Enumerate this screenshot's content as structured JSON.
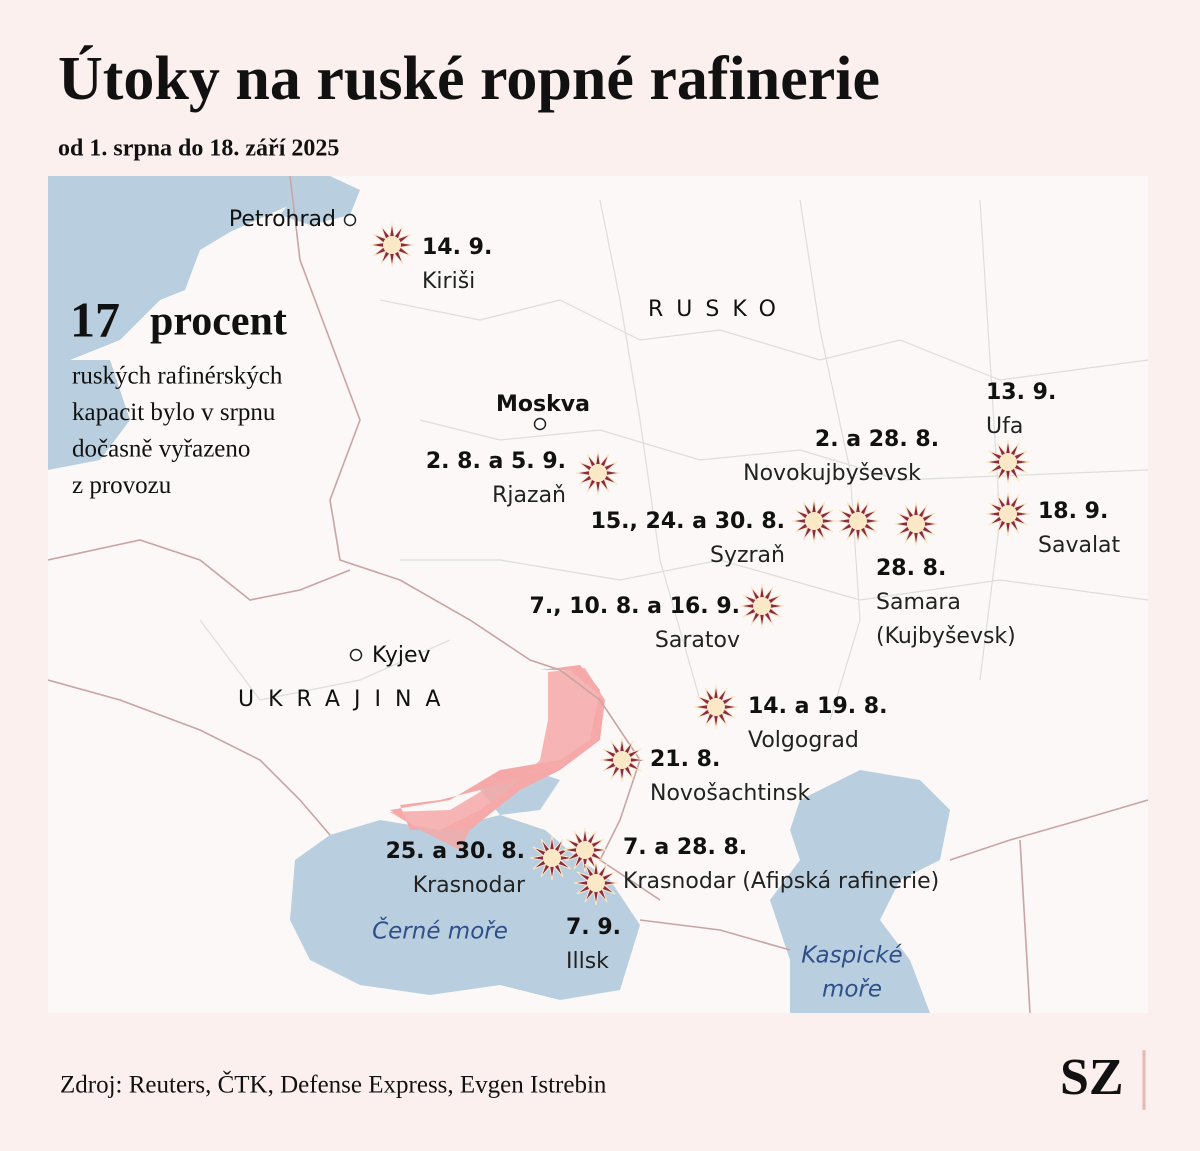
{
  "header": {
    "title": "Útoky na ruské ropné rafinerie",
    "subtitle": "od 1. srpna do 18. září 2025"
  },
  "callout": {
    "number": 17,
    "unit": "procent",
    "lines": [
      "ruských rafinérských",
      "kapacit bylo v srpnu",
      "dočasně vyřazeno",
      "z provozu"
    ]
  },
  "map": {
    "countries": [
      "RUSKO",
      "UKRAJINA"
    ],
    "cities": [
      "Petrohrad",
      "Moskva",
      "Kyjev"
    ],
    "seas": [
      [
        "Černé moře"
      ],
      [
        "Kaspické",
        "moře"
      ]
    ],
    "attacks": [
      {
        "date": "14. 9.",
        "place": "Kiriši"
      },
      {
        "date": "2. 8. a 5. 9.",
        "place": "Rjazaň"
      },
      {
        "date": "15., 24. a 30. 8.",
        "place": "Syzraň"
      },
      {
        "date": "2. a 28. 8.",
        "place": "Novokujbyševsk"
      },
      {
        "date": "28. 8.",
        "place": "Samara",
        "place_note": "(Kujbyševsk)"
      },
      {
        "date": "13. 9.",
        "place": "Ufa"
      },
      {
        "date": "18. 9.",
        "place": "Savalat"
      },
      {
        "date": "7., 10. 8. a 16. 9.",
        "place": "Saratov"
      },
      {
        "date": "14. a 19. 8.",
        "place": "Volgograd"
      },
      {
        "date": "21. 8.",
        "place": "Novošachtinsk"
      },
      {
        "date": "25. a 30. 8.",
        "place": "Krasnodar"
      },
      {
        "date": "7. a 28. 8.",
        "place": "Krasnodar (Afipská rafinerie)"
      },
      {
        "date": "7. 9.",
        "place": "Illsk"
      }
    ]
  },
  "footer": {
    "source": "Zdroj: Reuters, ČTK, Defense Express, Evgen Istrebin",
    "logo": "SZ"
  }
}
